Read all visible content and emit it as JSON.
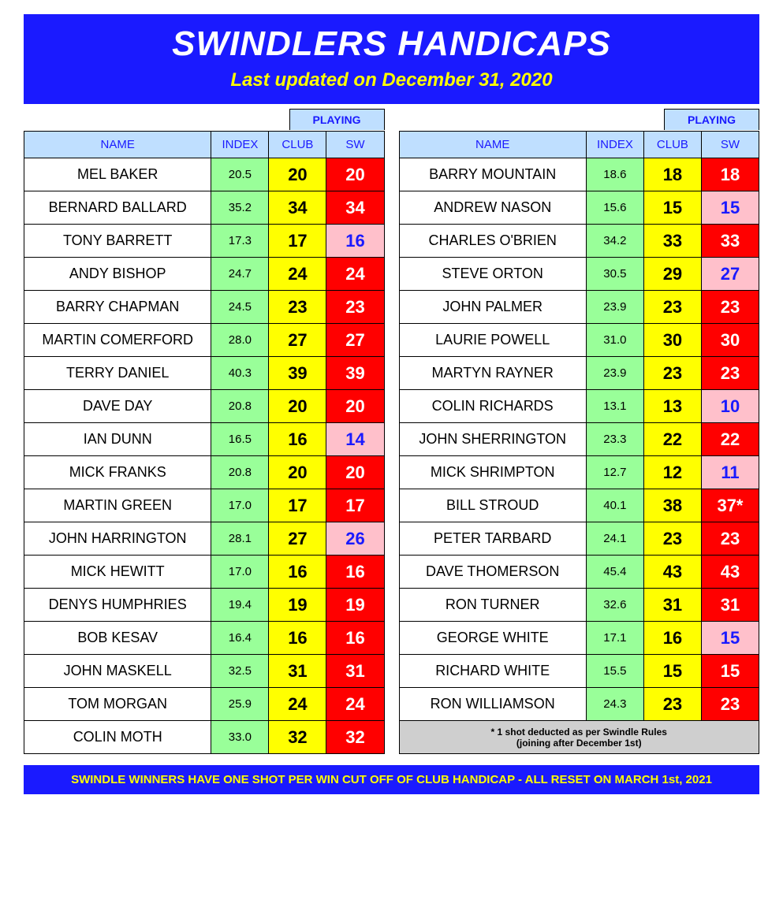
{
  "header": {
    "title": "SWINDLERS HANDICAPS",
    "subtitle": "Last updated on December 31, 2020"
  },
  "labels": {
    "playing": "PLAYING",
    "name": "NAME",
    "index": "INDEX",
    "club": "CLUB",
    "sw": "SW"
  },
  "colors": {
    "banner_bg": "#1a1aff",
    "banner_text": "#ffffff",
    "subtitle_text": "#ffff00",
    "header_bg": "#bfdfff",
    "header_text": "#1a1aff",
    "index_bg": "#99ff99",
    "club_bg": "#ffff00",
    "sw_red_bg": "#ff0000",
    "sw_red_text": "#ffffff",
    "sw_pink_bg": "#ffc0cb",
    "sw_pink_text": "#1a1aff",
    "footnote_bg": "#cfcfcf",
    "footer_bg": "#1a1aff",
    "footer_text": "#ffff00"
  },
  "left_rows": [
    {
      "name": "MEL BAKER",
      "index": "20.5",
      "club": "20",
      "sw": "20",
      "sw_style": "red"
    },
    {
      "name": "BERNARD BALLARD",
      "index": "35.2",
      "club": "34",
      "sw": "34",
      "sw_style": "red"
    },
    {
      "name": "TONY BARRETT",
      "index": "17.3",
      "club": "17",
      "sw": "16",
      "sw_style": "pink"
    },
    {
      "name": "ANDY BISHOP",
      "index": "24.7",
      "club": "24",
      "sw": "24",
      "sw_style": "red"
    },
    {
      "name": "BARRY CHAPMAN",
      "index": "24.5",
      "club": "23",
      "sw": "23",
      "sw_style": "red"
    },
    {
      "name": "MARTIN COMERFORD",
      "index": "28.0",
      "club": "27",
      "sw": "27",
      "sw_style": "red"
    },
    {
      "name": "TERRY DANIEL",
      "index": "40.3",
      "club": "39",
      "sw": "39",
      "sw_style": "red"
    },
    {
      "name": "DAVE DAY",
      "index": "20.8",
      "club": "20",
      "sw": "20",
      "sw_style": "red"
    },
    {
      "name": "IAN DUNN",
      "index": "16.5",
      "club": "16",
      "sw": "14",
      "sw_style": "pink"
    },
    {
      "name": "MICK FRANKS",
      "index": "20.8",
      "club": "20",
      "sw": "20",
      "sw_style": "red"
    },
    {
      "name": "MARTIN GREEN",
      "index": "17.0",
      "club": "17",
      "sw": "17",
      "sw_style": "red"
    },
    {
      "name": "JOHN HARRINGTON",
      "index": "28.1",
      "club": "27",
      "sw": "26",
      "sw_style": "pink"
    },
    {
      "name": "MICK HEWITT",
      "index": "17.0",
      "club": "16",
      "sw": "16",
      "sw_style": "red"
    },
    {
      "name": "DENYS HUMPHRIES",
      "index": "19.4",
      "club": "19",
      "sw": "19",
      "sw_style": "red"
    },
    {
      "name": "BOB KESAV",
      "index": "16.4",
      "club": "16",
      "sw": "16",
      "sw_style": "red"
    },
    {
      "name": "JOHN MASKELL",
      "index": "32.5",
      "club": "31",
      "sw": "31",
      "sw_style": "red"
    },
    {
      "name": "TOM MORGAN",
      "index": "25.9",
      "club": "24",
      "sw": "24",
      "sw_style": "red"
    },
    {
      "name": "COLIN MOTH",
      "index": "33.0",
      "club": "32",
      "sw": "32",
      "sw_style": "red"
    }
  ],
  "right_rows": [
    {
      "name": "BARRY MOUNTAIN",
      "index": "18.6",
      "club": "18",
      "sw": "18",
      "sw_style": "red"
    },
    {
      "name": "ANDREW NASON",
      "index": "15.6",
      "club": "15",
      "sw": "15",
      "sw_style": "pink"
    },
    {
      "name": "CHARLES O'BRIEN",
      "index": "34.2",
      "club": "33",
      "sw": "33",
      "sw_style": "red"
    },
    {
      "name": "STEVE ORTON",
      "index": "30.5",
      "club": "29",
      "sw": "27",
      "sw_style": "pink"
    },
    {
      "name": "JOHN PALMER",
      "index": "23.9",
      "club": "23",
      "sw": "23",
      "sw_style": "red"
    },
    {
      "name": "LAURIE POWELL",
      "index": "31.0",
      "club": "30",
      "sw": "30",
      "sw_style": "red"
    },
    {
      "name": "MARTYN RAYNER",
      "index": "23.9",
      "club": "23",
      "sw": "23",
      "sw_style": "red"
    },
    {
      "name": "COLIN RICHARDS",
      "index": "13.1",
      "club": "13",
      "sw": "10",
      "sw_style": "pink"
    },
    {
      "name": "JOHN SHERRINGTON",
      "index": "23.3",
      "club": "22",
      "sw": "22",
      "sw_style": "red"
    },
    {
      "name": "MICK SHRIMPTON",
      "index": "12.7",
      "club": "12",
      "sw": "11",
      "sw_style": "pink"
    },
    {
      "name": "BILL STROUD",
      "index": "40.1",
      "club": "38",
      "sw": "37*",
      "sw_style": "red"
    },
    {
      "name": "PETER TARBARD",
      "index": "24.1",
      "club": "23",
      "sw": "23",
      "sw_style": "red"
    },
    {
      "name": "DAVE THOMERSON",
      "index": "45.4",
      "club": "43",
      "sw": "43",
      "sw_style": "red"
    },
    {
      "name": "RON TURNER",
      "index": "32.6",
      "club": "31",
      "sw": "31",
      "sw_style": "red"
    },
    {
      "name": "GEORGE WHITE",
      "index": "17.1",
      "club": "16",
      "sw": "15",
      "sw_style": "pink"
    },
    {
      "name": "RICHARD WHITE",
      "index": "15.5",
      "club": "15",
      "sw": "15",
      "sw_style": "red"
    },
    {
      "name": "RON WILLIAMSON",
      "index": "24.3",
      "club": "23",
      "sw": "23",
      "sw_style": "red"
    }
  ],
  "footnote": {
    "line1": "* 1 shot deducted as per Swindle Rules",
    "line2": "(joining after December 1st)"
  },
  "footer": "SWINDLE WINNERS HAVE ONE SHOT PER WIN CUT OFF OF CLUB HANDICAP - ALL RESET ON MARCH 1st, 2021"
}
